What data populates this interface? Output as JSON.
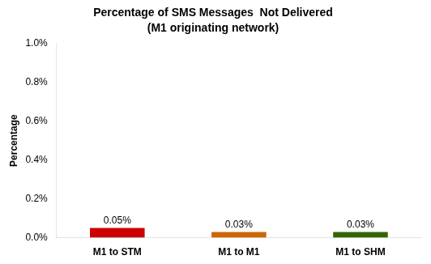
{
  "chart_data": {
    "type": "bar",
    "title": "Percentage of SMS Messages  Not Delivered",
    "subtitle": "(M1 originating network)",
    "categories": [
      "M1 to STM",
      "M1 to M1",
      "M1 to SHM"
    ],
    "values": [
      0.0005,
      0.0003,
      0.0003
    ],
    "value_labels": [
      "0.05%",
      "0.03%",
      "0.03%"
    ],
    "data_labels": true,
    "colors": [
      "#cc0000",
      "#cc6600",
      "#336600"
    ],
    "ylabel": "Percentage",
    "ylim": [
      0,
      0.01
    ],
    "yticks": [
      {
        "value": 0.0,
        "label": "0.0%"
      },
      {
        "value": 0.002,
        "label": "0.2%"
      },
      {
        "value": 0.004,
        "label": "0.4%"
      },
      {
        "value": 0.006,
        "label": "0.6%"
      },
      {
        "value": 0.008,
        "label": "0.8%"
      },
      {
        "value": 0.01,
        "label": "1.0%"
      }
    ],
    "grid": false
  }
}
